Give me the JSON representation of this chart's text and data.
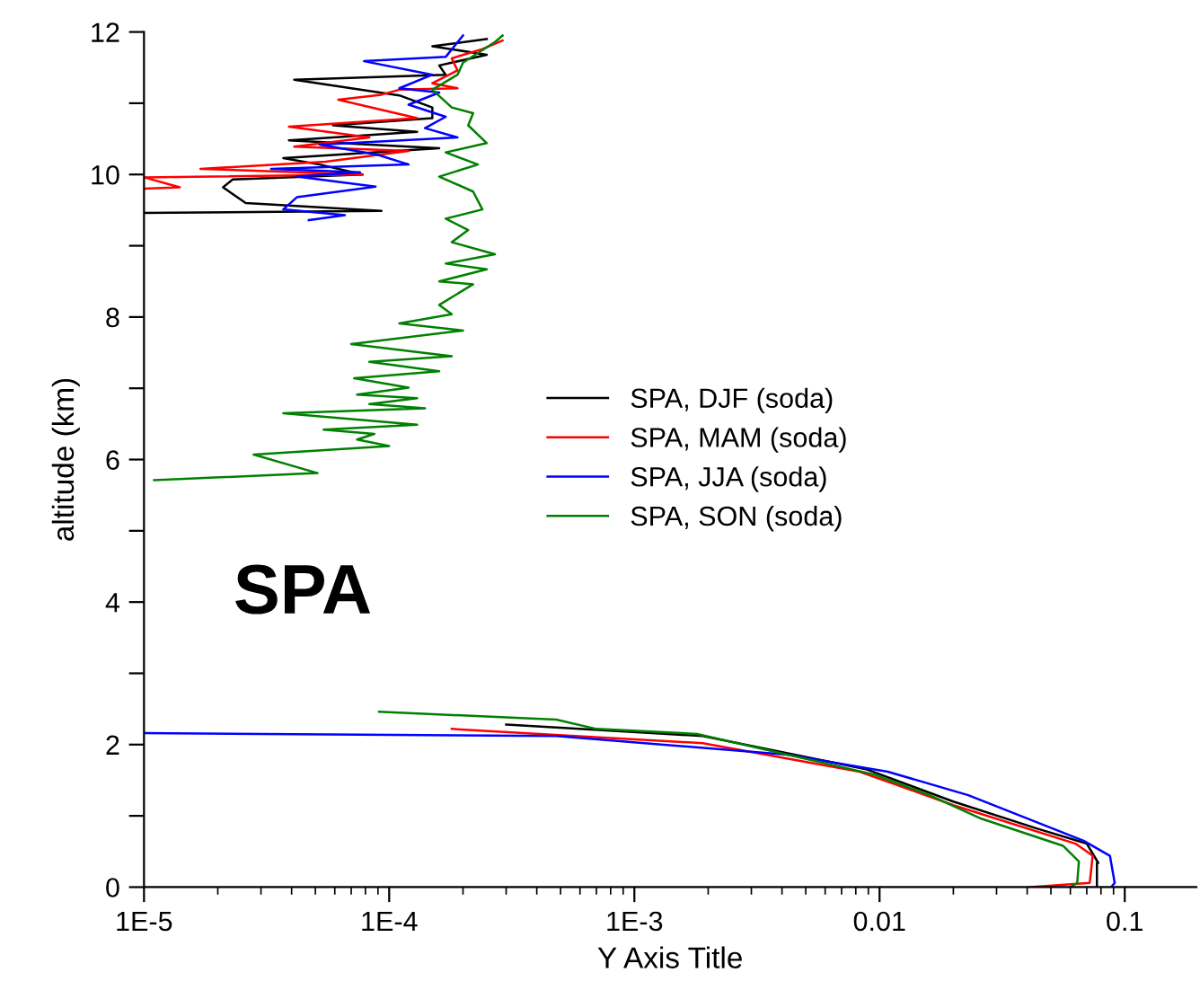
{
  "chart_data": {
    "type": "line",
    "xlabel": "Y Axis Title",
    "ylabel": "altitude (km)",
    "log": "x",
    "xlim": [
      1e-05,
      0.196
    ],
    "xticks": [
      {
        "value": 1e-05,
        "label": "1E-5"
      },
      {
        "value": 0.0001,
        "label": "1E-4"
      },
      {
        "value": 0.001,
        "label": "1E-3"
      },
      0.01,
      0.1
    ],
    "ylim": [
      0,
      12
    ],
    "yticks": [
      0,
      {
        "value": 1,
        "label": null
      },
      2,
      {
        "value": 3,
        "label": null
      },
      4,
      {
        "value": 5,
        "label": null
      },
      6,
      {
        "value": 7,
        "label": null
      },
      8,
      {
        "value": 9,
        "label": null
      },
      10,
      {
        "value": 11,
        "label": null
      },
      12
    ],
    "grid": false,
    "legend": "center right",
    "marker": "none",
    "line_style": "solid",
    "annotations": [
      "SPA"
    ],
    "series": [
      {
        "name": "SPA, DJF (soda)",
        "color": "#000000",
        "x": [
          0.077,
          0.077,
          0.078,
          0.07,
          0.044,
          0.02,
          0.0089,
          0.0019,
          0.0003,
          null,
          1e-05,
          9.3e-05,
          2.6e-05,
          2.1e-05,
          2.3e-05,
          7.8e-05,
          5.2e-05,
          3.7e-05,
          0.00016,
          3.9e-05,
          0.00013,
          5.9e-05,
          0.00015,
          0.00015,
          0.00011,
          4.1e-05,
          0.00017,
          0.00016,
          0.00025,
          0.00015,
          0.00025
        ],
        "values": [
          0.01,
          0.34,
          0.34,
          0.61,
          0.82,
          1.2,
          1.65,
          2.12,
          2.28,
          null,
          9.46,
          9.49,
          9.6,
          9.82,
          9.93,
          10.0,
          10.14,
          10.23,
          10.37,
          10.48,
          10.6,
          10.69,
          10.79,
          10.94,
          11.11,
          11.33,
          11.4,
          11.53,
          11.68,
          11.8,
          11.9
        ]
      },
      {
        "name": "SPA, MAM (soda)",
        "color": "#ff0000",
        "x": [
          0.041,
          0.072,
          0.074,
          0.063,
          0.02,
          0.0083,
          0.0019,
          0.00018,
          null,
          1e-05,
          1.4e-05,
          1e-05,
          7.8e-05,
          1.7e-05,
          5.5e-05,
          0.00012,
          4.1e-05,
          8.3e-05,
          3.9e-05,
          0.00013,
          6.2e-05,
          9.3e-05,
          0.00011,
          0.00019,
          0.00015,
          0.00019,
          0.00018,
          0.00024,
          0.00029
        ],
        "values": [
          0.0,
          0.06,
          0.44,
          0.61,
          1.15,
          1.62,
          2.02,
          2.22,
          null,
          9.8,
          9.82,
          9.96,
          10.0,
          10.08,
          10.18,
          10.33,
          10.39,
          10.52,
          10.67,
          10.79,
          11.05,
          11.12,
          11.19,
          11.21,
          11.28,
          11.46,
          11.63,
          11.76,
          11.88
        ]
      },
      {
        "name": "SPA, JJA (soda)",
        "color": "#0000ff",
        "x": [
          0.088,
          0.091,
          0.087,
          0.068,
          0.023,
          0.0108,
          0.0042,
          0.00048,
          1e-05,
          null,
          4.7e-05,
          6.6e-05,
          3.7e-05,
          4.2e-05,
          8.8e-05,
          4.2e-05,
          7.6e-05,
          3.3e-05,
          0.00012,
          8.9e-05,
          5.2e-05,
          0.00019,
          0.00014,
          0.00017,
          0.00012,
          0.00016,
          0.00011,
          0.00015,
          7.9e-05,
          0.00017,
          0.0002
        ],
        "values": [
          0.0,
          0.06,
          0.44,
          0.65,
          1.29,
          1.62,
          1.86,
          2.12,
          2.16,
          null,
          9.36,
          9.43,
          9.51,
          9.68,
          9.83,
          9.97,
          10.03,
          10.08,
          10.14,
          10.28,
          10.42,
          10.52,
          10.65,
          10.81,
          10.98,
          11.15,
          11.21,
          11.4,
          11.59,
          11.65,
          11.95
        ]
      },
      {
        "name": "SPA, SON (soda)",
        "color": "#008000",
        "x": [
          0.06,
          0.064,
          0.065,
          0.056,
          0.026,
          0.016,
          0.0095,
          0.0018,
          0.0007,
          0.00048,
          9.1e-05,
          null,
          1.1e-05,
          5.1e-05,
          2.8e-05,
          0.0001,
          7.4e-05,
          8.7e-05,
          5.4e-05,
          0.00013,
          3.7e-05,
          0.00014,
          8.3e-05,
          0.00013,
          7.4e-05,
          0.00012,
          7.2e-05,
          0.00016,
          8.3e-05,
          0.00018,
          7e-05,
          0.0002,
          0.00011,
          0.00018,
          0.00016,
          0.00022,
          0.00016,
          0.00025,
          0.00017,
          0.00027,
          0.00018,
          0.00021,
          0.00017,
          0.00024,
          0.00022,
          0.00016,
          0.00023,
          0.00017,
          0.00025,
          0.00021,
          0.00022,
          0.00018,
          0.00015,
          0.00019,
          0.0002,
          0.00027,
          0.00029
        ],
        "values": [
          0.0,
          0.06,
          0.36,
          0.58,
          0.96,
          1.29,
          1.58,
          2.15,
          2.22,
          2.35,
          2.46,
          null,
          5.71,
          5.81,
          6.07,
          6.19,
          6.28,
          6.36,
          6.42,
          6.49,
          6.65,
          6.72,
          6.78,
          6.86,
          6.91,
          7.01,
          7.14,
          7.24,
          7.37,
          7.45,
          7.62,
          7.81,
          7.91,
          8.04,
          8.17,
          8.46,
          8.5,
          8.67,
          8.75,
          8.88,
          9.05,
          9.22,
          9.38,
          9.51,
          9.76,
          9.97,
          10.14,
          10.31,
          10.44,
          10.69,
          10.86,
          10.94,
          11.19,
          11.4,
          11.57,
          11.86,
          11.95
        ]
      }
    ]
  }
}
